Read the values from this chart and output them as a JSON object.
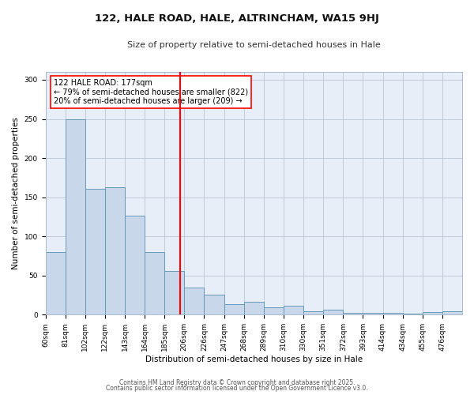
{
  "title": "122, HALE ROAD, HALE, ALTRINCHAM, WA15 9HJ",
  "subtitle": "Size of property relative to semi-detached houses in Hale",
  "xlabel": "Distribution of semi-detached houses by size in Hale",
  "ylabel": "Number of semi-detached properties",
  "bar_color": "#c8d8ea",
  "bar_edge_color": "#6699bb",
  "plot_bg_color": "#e8eef8",
  "fig_bg_color": "#ffffff",
  "categories": [
    "60sqm",
    "81sqm",
    "102sqm",
    "122sqm",
    "143sqm",
    "164sqm",
    "185sqm",
    "206sqm",
    "226sqm",
    "247sqm",
    "268sqm",
    "289sqm",
    "310sqm",
    "330sqm",
    "351sqm",
    "372sqm",
    "393sqm",
    "414sqm",
    "434sqm",
    "455sqm",
    "476sqm"
  ],
  "bin_edges": [
    0,
    1,
    2,
    3,
    4,
    5,
    6,
    7,
    8,
    9,
    10,
    11,
    12,
    13,
    14,
    15,
    16,
    17,
    18,
    19,
    20,
    21
  ],
  "values": [
    80,
    250,
    161,
    163,
    126,
    80,
    56,
    35,
    26,
    13,
    16,
    9,
    11,
    4,
    6,
    2,
    2,
    2,
    1,
    3,
    4
  ],
  "ylim": [
    0,
    310
  ],
  "yticks": [
    0,
    50,
    100,
    150,
    200,
    250,
    300
  ],
  "vline_x": 6.8,
  "vline_color": "red",
  "annotation_title": "122 HALE ROAD: 177sqm",
  "annotation_line1": "← 79% of semi-detached houses are smaller (822)",
  "annotation_line2": "20% of semi-detached houses are larger (209) →",
  "annotation_box_color": "white",
  "annotation_box_edge": "red",
  "footer1": "Contains HM Land Registry data © Crown copyright and database right 2025.",
  "footer2": "Contains public sector information licensed under the Open Government Licence v3.0.",
  "grid_color": "#b0bece",
  "title_fontsize": 9.5,
  "subtitle_fontsize": 8,
  "xlabel_fontsize": 7.5,
  "ylabel_fontsize": 7.5,
  "tick_fontsize": 6.5,
  "annotation_fontsize": 7,
  "footer_fontsize": 5.5
}
